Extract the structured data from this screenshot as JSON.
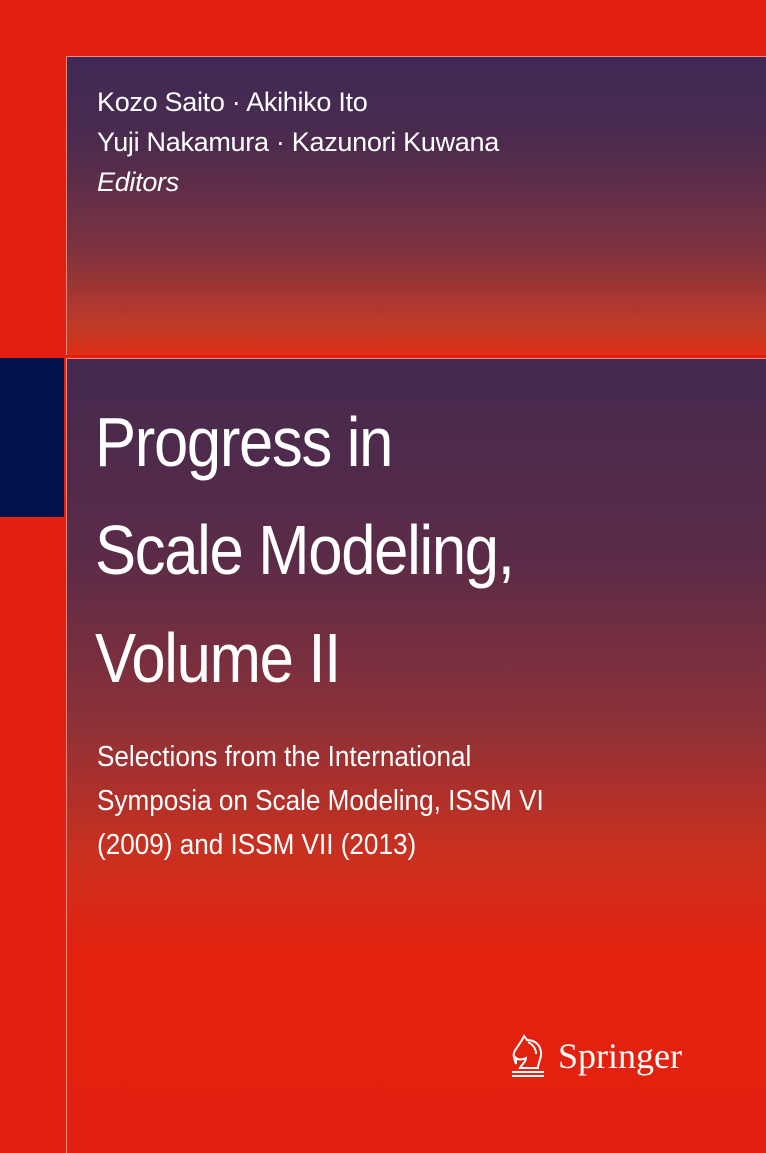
{
  "cover": {
    "authors": [
      "Kozo Saito · Akihiko Ito",
      "Yuji Nakamura · Kazunori Kuwana"
    ],
    "role": "Editors",
    "title_lines": [
      "Progress in",
      "Scale Modeling,",
      "Volume II"
    ],
    "subtitle_lines": [
      "Selections from the International",
      "Symposia on Scale Modeling, ISSM VI",
      "(2009) and ISSM VII (2013)"
    ],
    "publisher": "Springer",
    "colors": {
      "background": "#e3200f",
      "navy_block": "#00134a",
      "panel_top": "#3e2a55"
    }
  }
}
